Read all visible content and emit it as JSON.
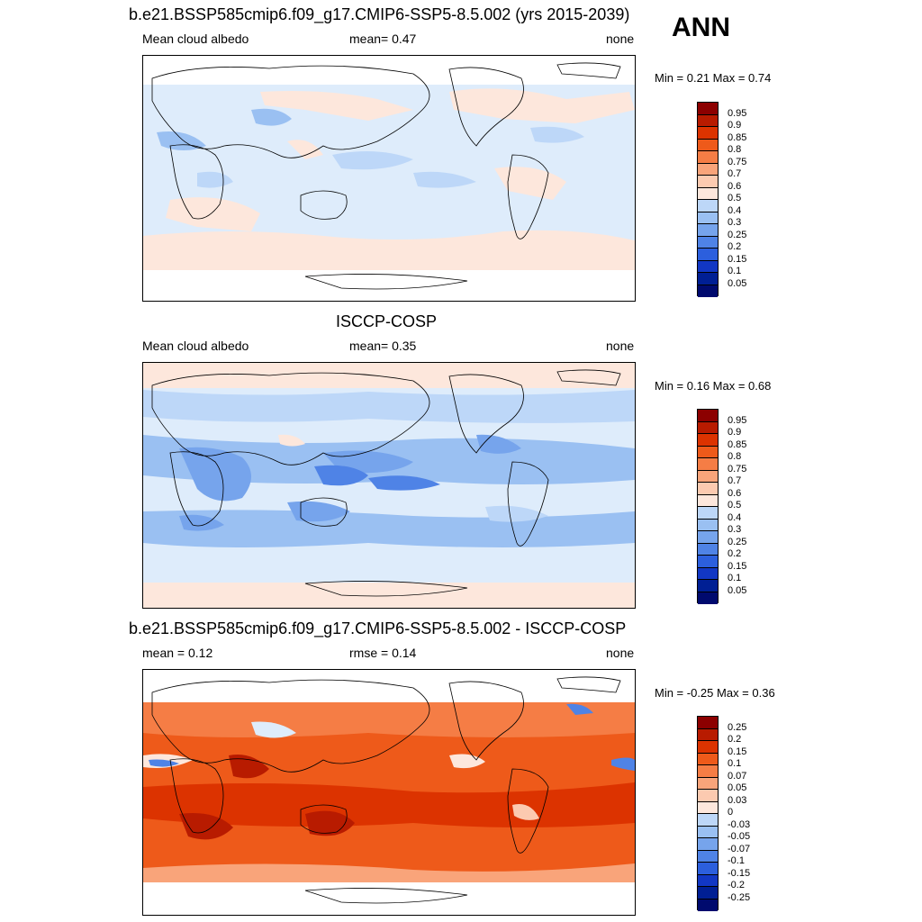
{
  "season_label": "ANN",
  "colors": {
    "positive_scale": [
      "#8c0000",
      "#b81b00",
      "#dc3300",
      "#ee5a1a",
      "#f57d45",
      "#f9a47a",
      "#fccab0",
      "#fde7dc",
      "#deecfb",
      "#bdd7f8",
      "#9ac0f2",
      "#76a4ec",
      "#4f83e6",
      "#2c5fdd",
      "#1237c4",
      "#001f94",
      "#000a6e"
    ],
    "land_outline": "#000000"
  },
  "panels": [
    {
      "title": "b.e21.BSSP585cmip6.f09_g17.CMIP6-SSP5-8.5.002 (yrs 2015-2039)",
      "left_label": "Mean cloud albedo",
      "center_label": "mean=   0.47",
      "right_label": "none",
      "minmax": "Min =   0.21 Max =   0.74",
      "colorbar_labels": [
        "0.95",
        "0.9",
        "0.85",
        "0.8",
        "0.75",
        "0.7",
        "0.6",
        "0.5",
        "0.4",
        "0.3",
        "0.25",
        "0.2",
        "0.15",
        "0.1",
        "0.05"
      ]
    },
    {
      "title": "ISCCP-COSP",
      "left_label": "Mean cloud albedo",
      "center_label": "mean=   0.35",
      "right_label": "none",
      "minmax": "Min =   0.16 Max =   0.68",
      "colorbar_labels": [
        "0.95",
        "0.9",
        "0.85",
        "0.8",
        "0.75",
        "0.7",
        "0.6",
        "0.5",
        "0.4",
        "0.3",
        "0.25",
        "0.2",
        "0.15",
        "0.1",
        "0.05"
      ]
    },
    {
      "title": "b.e21.BSSP585cmip6.f09_g17.CMIP6-SSP5-8.5.002 - ISCCP-COSP",
      "left_label": "mean =   0.12",
      "center_label": "rmse =   0.14",
      "right_label": "none",
      "minmax": "Min =  -0.25 Max =   0.36",
      "colorbar_labels": [
        "0.25",
        "0.2",
        "0.15",
        "0.1",
        "0.07",
        "0.05",
        "0.03",
        "0",
        "-0.03",
        "-0.05",
        "-0.07",
        "-0.1",
        "-0.15",
        "-0.2",
        "-0.25"
      ]
    }
  ],
  "chart_data": [
    {
      "type": "heatmap",
      "title": "b.e21.BSSP585cmip6.f09_g17.CMIP6-SSP5-8.5.002 (yrs 2015-2039)",
      "variable": "Mean cloud albedo",
      "units": "none",
      "mean": 0.47,
      "min": 0.21,
      "max": 0.74,
      "contour_levels": [
        0.05,
        0.1,
        0.15,
        0.2,
        0.25,
        0.3,
        0.4,
        0.5,
        0.6,
        0.7,
        0.75,
        0.8,
        0.85,
        0.9,
        0.95
      ]
    },
    {
      "type": "heatmap",
      "title": "ISCCP-COSP",
      "variable": "Mean cloud albedo",
      "units": "none",
      "mean": 0.35,
      "min": 0.16,
      "max": 0.68,
      "contour_levels": [
        0.05,
        0.1,
        0.15,
        0.2,
        0.25,
        0.3,
        0.4,
        0.5,
        0.6,
        0.7,
        0.75,
        0.8,
        0.85,
        0.9,
        0.95
      ]
    },
    {
      "type": "heatmap",
      "title": "b.e21.BSSP585cmip6.f09_g17.CMIP6-SSP5-8.5.002 - ISCCP-COSP",
      "units": "none",
      "mean": 0.12,
      "rmse": 0.14,
      "min": -0.25,
      "max": 0.36,
      "contour_levels": [
        -0.25,
        -0.2,
        -0.15,
        -0.1,
        -0.07,
        -0.05,
        -0.03,
        0,
        0.03,
        0.05,
        0.07,
        0.1,
        0.15,
        0.2,
        0.25
      ]
    }
  ]
}
